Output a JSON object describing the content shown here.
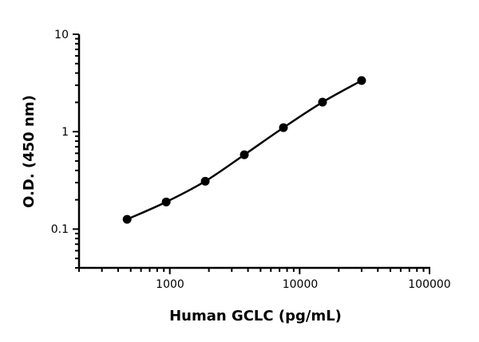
{
  "chart_data": {
    "type": "scatter",
    "title": "",
    "xlabel": "Human GCLC (pg/mL)",
    "ylabel": "O.D. (450 nm)",
    "x_scale": "log",
    "y_scale": "log",
    "xlim": [
      200,
      100000
    ],
    "ylim": [
      0.04,
      10
    ],
    "x_ticks": [
      1000,
      10000,
      100000
    ],
    "x_tick_labels": [
      "1000",
      "10000",
      "100000"
    ],
    "y_ticks": [
      0.1,
      1,
      10
    ],
    "y_tick_labels": [
      "0.1",
      "1",
      "10"
    ],
    "grid": false,
    "legend": "none",
    "fit_line": "smooth curve through points",
    "series": [
      {
        "color": "#000000",
        "x": [
          469,
          938,
          1875,
          3750,
          7500,
          15000,
          30000
        ],
        "y": [
          0.126,
          0.19,
          0.31,
          0.58,
          1.1,
          2.01,
          3.35
        ]
      }
    ]
  }
}
